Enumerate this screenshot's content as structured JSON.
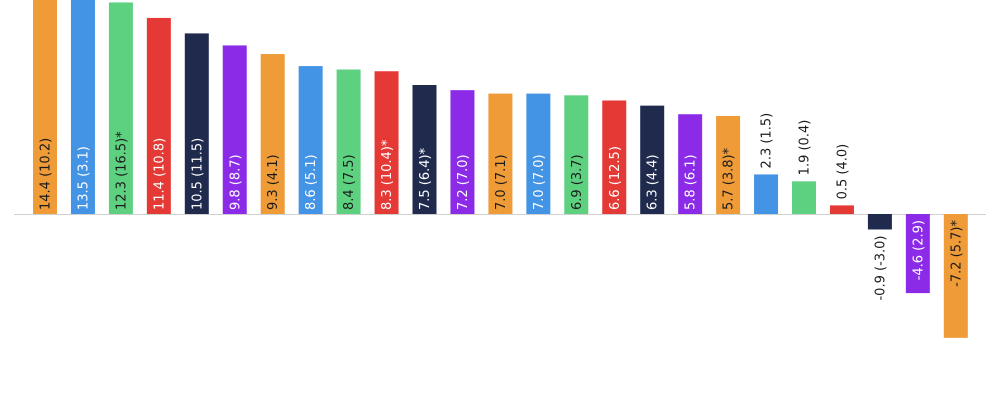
{
  "chart_data": {
    "type": "bar",
    "title": "",
    "xlabel": "",
    "ylabel": "",
    "ylim": [
      -7.5,
      14.4
    ],
    "grid": false,
    "legend": "none",
    "baseline": 0,
    "colors": {
      "orange": "#EE9B38",
      "blue": "#4394E5",
      "green": "#5ED180",
      "red": "#E53935",
      "navy": "#1F2A4D",
      "purple": "#8B2BE8"
    },
    "bars": [
      {
        "value": 14.4,
        "label": "14.4 (10.2)",
        "color": "#EE9B38"
      },
      {
        "value": 13.5,
        "label": "13.5 (3.1)",
        "color": "#4394E5"
      },
      {
        "value": 12.3,
        "label": "12.3 (16.5)*",
        "color": "#5ED180"
      },
      {
        "value": 11.4,
        "label": "11.4 (10.8)",
        "color": "#E53935"
      },
      {
        "value": 10.5,
        "label": "10.5 (11.5)",
        "color": "#1F2A4D"
      },
      {
        "value": 9.8,
        "label": "9.8 (8.7)",
        "color": "#8B2BE8"
      },
      {
        "value": 9.3,
        "label": "9.3 (4.1)",
        "color": "#EE9B38"
      },
      {
        "value": 8.6,
        "label": "8.6 (5.1)",
        "color": "#4394E5"
      },
      {
        "value": 8.4,
        "label": "8.4 (7.5)",
        "color": "#5ED180"
      },
      {
        "value": 8.3,
        "label": "8.3 (10.4)*",
        "color": "#E53935"
      },
      {
        "value": 7.5,
        "label": "7.5 (6.4)*",
        "color": "#1F2A4D"
      },
      {
        "value": 7.2,
        "label": "7.2 (7.0)",
        "color": "#8B2BE8"
      },
      {
        "value": 7.0,
        "label": "7.0 (7.1)",
        "color": "#EE9B38"
      },
      {
        "value": 7.0,
        "label": "7.0 (7.0)",
        "color": "#4394E5"
      },
      {
        "value": 6.9,
        "label": "6.9 (3.7)",
        "color": "#5ED180"
      },
      {
        "value": 6.6,
        "label": "6.6 (12.5)",
        "color": "#E53935"
      },
      {
        "value": 6.3,
        "label": "6.3 (4.4)",
        "color": "#1F2A4D"
      },
      {
        "value": 5.8,
        "label": "5.8 (6.1)",
        "color": "#8B2BE8"
      },
      {
        "value": 5.7,
        "label": "5.7 (3.8)*",
        "color": "#EE9B38"
      },
      {
        "value": 2.3,
        "label": "2.3 (1.5)",
        "color": "#4394E5"
      },
      {
        "value": 1.9,
        "label": "1.9 (0.4)",
        "color": "#5ED180"
      },
      {
        "value": 0.5,
        "label": "0.5 (4.0)",
        "color": "#E53935"
      },
      {
        "value": -0.9,
        "label": "-0.9 (-3.0)",
        "color": "#1F2A4D"
      },
      {
        "value": -4.6,
        "label": "-4.6 (2.9)",
        "color": "#8B2BE8"
      },
      {
        "value": -7.2,
        "label": "-7.2 (5.7)*",
        "color": "#EE9B38"
      }
    ]
  }
}
